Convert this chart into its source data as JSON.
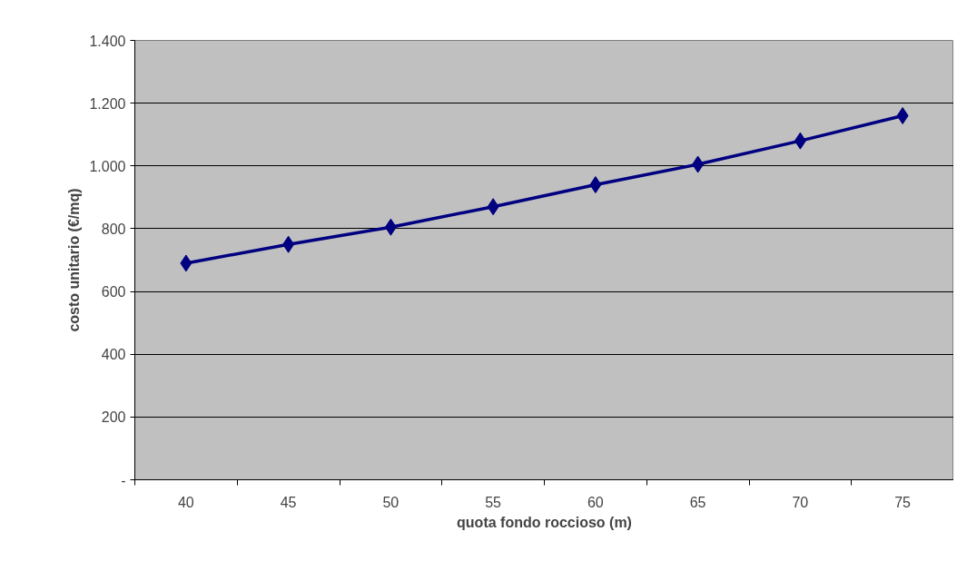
{
  "chart_data": {
    "type": "line",
    "xlabel": "quota fondo roccioso (m)",
    "ylabel": "costo unitario (€/mq)",
    "categories": [
      "40",
      "45",
      "50",
      "55",
      "60",
      "65",
      "70",
      "75"
    ],
    "series": [
      {
        "color": "#000080",
        "values": [
          690,
          750,
          805,
          870,
          940,
          1005,
          1080,
          1160
        ]
      }
    ],
    "ylim": [
      0,
      1400
    ],
    "yticks": [
      {
        "value": 0,
        "label": "-"
      },
      200,
      400,
      600,
      800,
      {
        "value": 1000,
        "label": "1.000"
      },
      {
        "value": 1200,
        "label": "1.200"
      },
      {
        "value": 1400,
        "label": "1.400"
      }
    ],
    "grid": "y",
    "marker": "diamond",
    "line_style": "solid"
  }
}
